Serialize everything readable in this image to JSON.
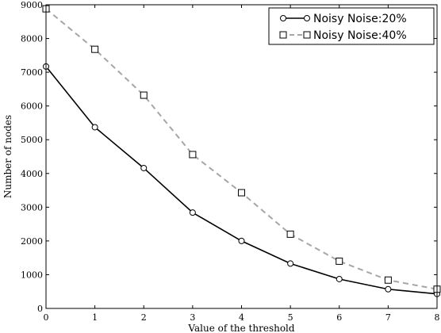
{
  "chart_data": {
    "type": "line",
    "xlabel": "Value of the threshold",
    "ylabel": "Number of nodes",
    "xlim": [
      0,
      8
    ],
    "ylim": [
      0,
      9000
    ],
    "x_ticks": [
      0,
      1,
      2,
      3,
      4,
      5,
      6,
      7,
      8
    ],
    "y_ticks": [
      0,
      1000,
      2000,
      3000,
      4000,
      5000,
      6000,
      7000,
      8000,
      9000
    ],
    "grid": false,
    "legend_position": "top-right",
    "series": [
      {
        "name": "Noisy Noise:20%",
        "x": [
          0,
          1,
          2,
          3,
          4,
          5,
          6,
          7,
          8
        ],
        "y": [
          7170,
          5370,
          4160,
          2840,
          2000,
          1330,
          870,
          570,
          430
        ],
        "color": "#000000",
        "line_style": "solid",
        "marker": "circle"
      },
      {
        "name": "Noisy Noise:40%",
        "x": [
          0,
          1,
          2,
          3,
          4,
          5,
          6,
          7,
          8
        ],
        "y": [
          8880,
          7680,
          6320,
          4560,
          3430,
          2200,
          1400,
          840,
          570
        ],
        "color": "#a6a6a6",
        "line_style": "dashed",
        "marker": "square"
      }
    ]
  }
}
